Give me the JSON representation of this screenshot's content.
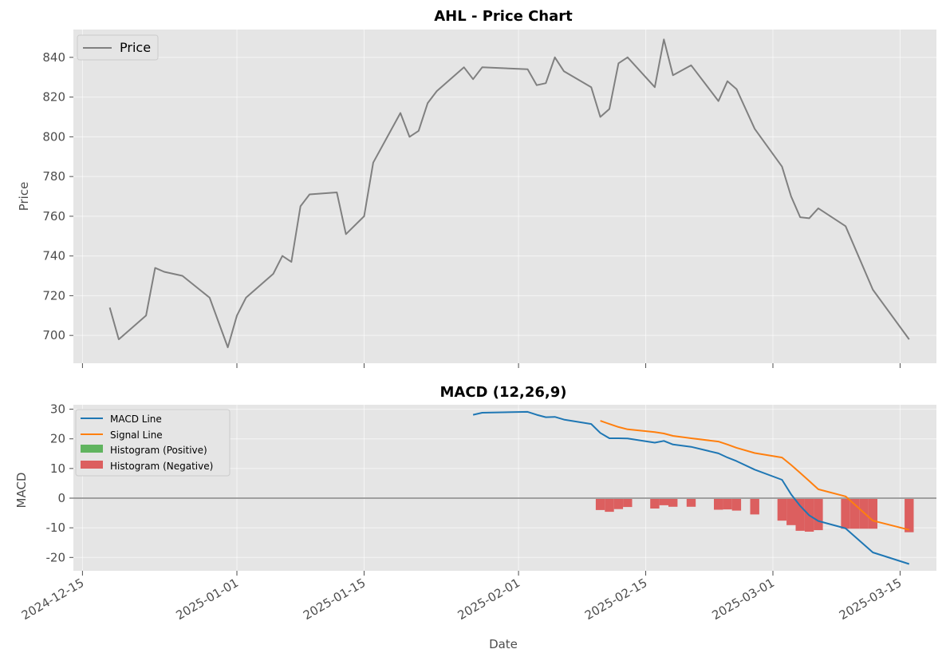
{
  "chart_data": [
    {
      "type": "line",
      "title": "AHL - Price Chart",
      "xlabel": "",
      "ylabel": "Price",
      "ylim": [
        686,
        854
      ],
      "xlim": [
        "2024-12-14",
        "2025-03-19"
      ],
      "yticks": [
        700,
        720,
        740,
        760,
        780,
        800,
        820,
        840
      ],
      "xticks": [
        "2024-12-15",
        "2025-01-01",
        "2025-01-15",
        "2025-02-01",
        "2025-02-15",
        "2025-03-01",
        "2025-03-15"
      ],
      "grid": true,
      "legend": "upper left",
      "series": [
        {
          "name": "Price",
          "color": "#808080",
          "x": [
            "2024-12-18",
            "2024-12-19",
            "2024-12-22",
            "2024-12-23",
            "2024-12-24",
            "2024-12-26",
            "2024-12-29",
            "2024-12-31",
            "2025-01-01",
            "2025-01-02",
            "2025-01-05",
            "2025-01-06",
            "2025-01-07",
            "2025-01-08",
            "2025-01-09",
            "2025-01-12",
            "2025-01-13",
            "2025-01-15",
            "2025-01-16",
            "2025-01-19",
            "2025-01-20",
            "2025-01-21",
            "2025-01-22",
            "2025-01-23",
            "2025-01-26",
            "2025-01-27",
            "2025-01-28",
            "2025-02-02",
            "2025-02-03",
            "2025-02-04",
            "2025-02-05",
            "2025-02-06",
            "2025-02-09",
            "2025-02-10",
            "2025-02-11",
            "2025-02-12",
            "2025-02-13",
            "2025-02-16",
            "2025-02-17",
            "2025-02-18",
            "2025-02-20",
            "2025-02-23",
            "2025-02-24",
            "2025-02-25",
            "2025-02-27",
            "2025-03-02",
            "2025-03-03",
            "2025-03-04",
            "2025-03-05",
            "2025-03-06",
            "2025-03-09",
            "2025-03-12",
            "2025-03-16"
          ],
          "y": [
            714,
            698,
            710,
            734,
            732,
            730,
            719,
            694,
            710,
            719,
            731,
            740,
            737,
            765,
            771,
            772,
            751,
            760,
            787,
            812,
            800,
            803,
            817,
            823,
            835,
            829,
            835,
            834,
            826,
            827,
            840,
            833,
            825,
            810,
            814,
            837,
            840,
            825,
            849,
            831,
            836,
            818,
            828,
            824,
            804,
            785,
            770,
            759.5,
            759,
            764,
            755,
            723,
            698
          ]
        }
      ]
    },
    {
      "type": "line",
      "title": "MACD (12,26,9)",
      "xlabel": "Date",
      "ylabel": "MACD",
      "ylim": [
        -24.5,
        31.5
      ],
      "xlim": [
        "2024-12-14",
        "2025-03-19"
      ],
      "yticks": [
        -20,
        -10,
        0,
        10,
        20,
        30
      ],
      "xticks": [
        "2024-12-15",
        "2025-01-01",
        "2025-01-15",
        "2025-02-01",
        "2025-02-15",
        "2025-03-01",
        "2025-03-15"
      ],
      "grid": true,
      "legend": "upper left",
      "zero_line": 0,
      "series": [
        {
          "name": "MACD Line",
          "color": "#1f77b4",
          "x": [
            "2025-01-27",
            "2025-01-28",
            "2025-02-02",
            "2025-02-03",
            "2025-02-04",
            "2025-02-05",
            "2025-02-06",
            "2025-02-09",
            "2025-02-10",
            "2025-02-11",
            "2025-02-12",
            "2025-02-13",
            "2025-02-16",
            "2025-02-17",
            "2025-02-18",
            "2025-02-20",
            "2025-02-23",
            "2025-02-24",
            "2025-02-25",
            "2025-02-27",
            "2025-03-02",
            "2025-03-03",
            "2025-03-04",
            "2025-03-05",
            "2025-03-06",
            "2025-03-09",
            "2025-03-12",
            "2025-03-16"
          ],
          "y": [
            28.1,
            28.8,
            29.1,
            28.1,
            27.3,
            27.4,
            26.5,
            25.0,
            22.0,
            20.2,
            20.2,
            20.1,
            18.7,
            19.3,
            18.1,
            17.3,
            15.1,
            13.7,
            12.5,
            9.6,
            6.2,
            1.3,
            -2.6,
            -5.8,
            -7.7,
            -10.2,
            -18.3,
            -22.2
          ]
        },
        {
          "name": "Signal Line",
          "color": "#ff7f0e",
          "x": [
            "2025-02-10",
            "2025-02-11",
            "2025-02-12",
            "2025-02-13",
            "2025-02-16",
            "2025-02-17",
            "2025-02-18",
            "2025-02-20",
            "2025-02-23",
            "2025-02-24",
            "2025-02-25",
            "2025-02-27",
            "2025-03-02",
            "2025-03-03",
            "2025-03-04",
            "2025-03-05",
            "2025-03-06",
            "2025-03-09",
            "2025-03-12",
            "2025-03-16"
          ],
          "y": [
            26.1,
            25.0,
            24.0,
            23.2,
            22.3,
            21.8,
            21.0,
            20.2,
            19.1,
            18.1,
            17.0,
            15.2,
            13.7,
            11.2,
            8.5,
            5.8,
            3.0,
            0.6,
            -7.6,
            -10.7
          ]
        },
        {
          "name": "Histogram (Positive)",
          "type": "bar",
          "color": "#60b45f",
          "x": [],
          "y": []
        },
        {
          "name": "Histogram (Negative)",
          "type": "bar",
          "color": "#dc5f5f",
          "x": [
            "2025-02-10",
            "2025-02-11",
            "2025-02-12",
            "2025-02-13",
            "2025-02-16",
            "2025-02-17",
            "2025-02-18",
            "2025-02-20",
            "2025-02-23",
            "2025-02-24",
            "2025-02-25",
            "2025-02-27",
            "2025-03-02",
            "2025-03-03",
            "2025-03-04",
            "2025-03-05",
            "2025-03-06",
            "2025-03-09",
            "2025-03-10",
            "2025-03-11",
            "2025-03-12",
            "2025-03-16"
          ],
          "y": [
            -4.0,
            -4.6,
            -3.7,
            -3.0,
            -3.5,
            -2.4,
            -2.9,
            -2.9,
            -3.9,
            -3.8,
            -4.2,
            -5.5,
            -7.6,
            -9.1,
            -11.0,
            -11.3,
            -10.8,
            -10.3,
            -10.3,
            -10.3,
            -10.3,
            -11.5
          ]
        }
      ]
    }
  ]
}
